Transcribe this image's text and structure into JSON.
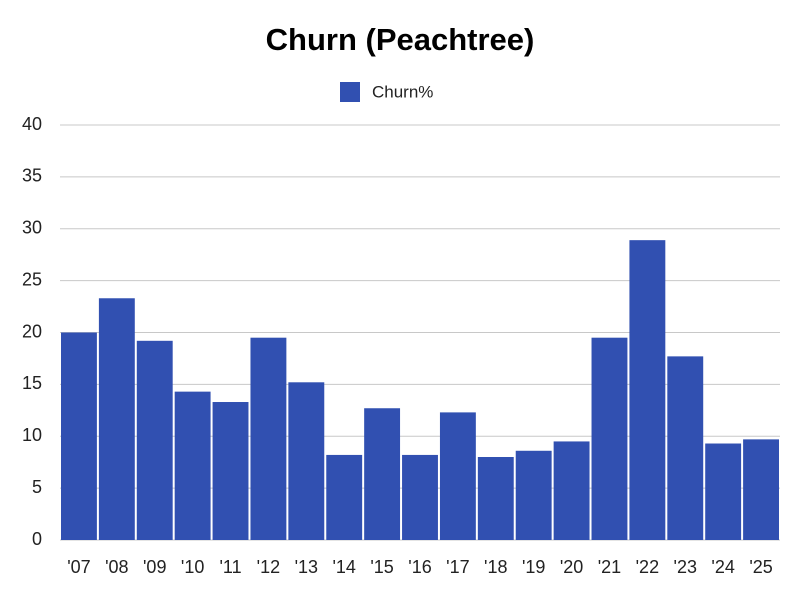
{
  "chart_data": {
    "type": "bar",
    "title": "Churn (Peachtree)",
    "categories": [
      "'07",
      "'08",
      "'09",
      "'10",
      "'11",
      "'12",
      "'13",
      "'14",
      "'15",
      "'16",
      "'17",
      "'18",
      "'19",
      "'20",
      "'21",
      "'22",
      "'23",
      "'24",
      "'25"
    ],
    "series": [
      {
        "name": "Churn%",
        "color": "#3150b1",
        "values": [
          20.0,
          23.3,
          19.2,
          14.3,
          13.3,
          19.5,
          15.2,
          8.2,
          12.7,
          8.2,
          12.3,
          8.0,
          8.6,
          9.5,
          19.5,
          28.9,
          17.7,
          9.3,
          9.7
        ]
      }
    ],
    "ylim": [
      0,
      40
    ],
    "yticks": [
      0,
      5,
      10,
      15,
      20,
      25,
      30,
      35,
      40
    ],
    "grid": true,
    "legend": "top"
  }
}
